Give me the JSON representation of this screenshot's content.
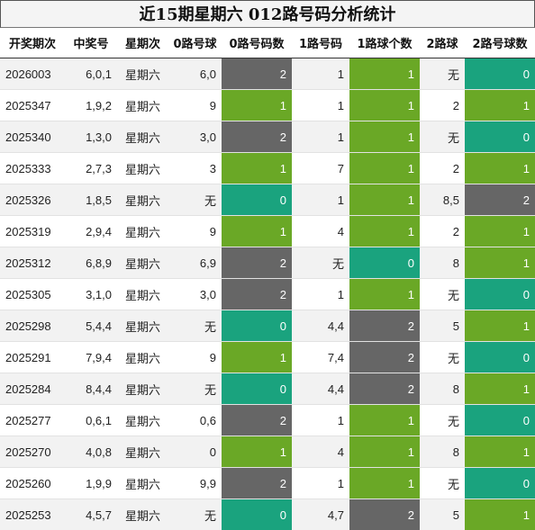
{
  "title": "近15期星期六 012路号码分析统计",
  "headers": [
    "开奖期次",
    "中奖号",
    "星期次",
    "0路号球",
    "0路号码数",
    "1路号码",
    "1路球个数",
    "2路球",
    "2路号球数"
  ],
  "rows": [
    {
      "period": "2026003",
      "number": "6,0,1",
      "weekday": "星期六",
      "r0": "6,0",
      "r0c": "2",
      "r1": "1",
      "r1c": "1",
      "r2": "无",
      "r2c": "0"
    },
    {
      "period": "2025347",
      "number": "1,9,2",
      "weekday": "星期六",
      "r0": "9",
      "r0c": "1",
      "r1": "1",
      "r1c": "1",
      "r2": "2",
      "r2c": "1"
    },
    {
      "period": "2025340",
      "number": "1,3,0",
      "weekday": "星期六",
      "r0": "3,0",
      "r0c": "2",
      "r1": "1",
      "r1c": "1",
      "r2": "无",
      "r2c": "0"
    },
    {
      "period": "2025333",
      "number": "2,7,3",
      "weekday": "星期六",
      "r0": "3",
      "r0c": "1",
      "r1": "7",
      "r1c": "1",
      "r2": "2",
      "r2c": "1"
    },
    {
      "period": "2025326",
      "number": "1,8,5",
      "weekday": "星期六",
      "r0": "无",
      "r0c": "0",
      "r1": "1",
      "r1c": "1",
      "r2": "8,5",
      "r2c": "2"
    },
    {
      "period": "2025319",
      "number": "2,9,4",
      "weekday": "星期六",
      "r0": "9",
      "r0c": "1",
      "r1": "4",
      "r1c": "1",
      "r2": "2",
      "r2c": "1"
    },
    {
      "period": "2025312",
      "number": "6,8,9",
      "weekday": "星期六",
      "r0": "6,9",
      "r0c": "2",
      "r1": "无",
      "r1c": "0",
      "r2": "8",
      "r2c": "1"
    },
    {
      "period": "2025305",
      "number": "3,1,0",
      "weekday": "星期六",
      "r0": "3,0",
      "r0c": "2",
      "r1": "1",
      "r1c": "1",
      "r2": "无",
      "r2c": "0"
    },
    {
      "period": "2025298",
      "number": "5,4,4",
      "weekday": "星期六",
      "r0": "无",
      "r0c": "0",
      "r1": "4,4",
      "r1c": "2",
      "r2": "5",
      "r2c": "1"
    },
    {
      "period": "2025291",
      "number": "7,9,4",
      "weekday": "星期六",
      "r0": "9",
      "r0c": "1",
      "r1": "7,4",
      "r1c": "2",
      "r2": "无",
      "r2c": "0"
    },
    {
      "period": "2025284",
      "number": "8,4,4",
      "weekday": "星期六",
      "r0": "无",
      "r0c": "0",
      "r1": "4,4",
      "r1c": "2",
      "r2": "8",
      "r2c": "1"
    },
    {
      "period": "2025277",
      "number": "0,6,1",
      "weekday": "星期六",
      "r0": "0,6",
      "r0c": "2",
      "r1": "1",
      "r1c": "1",
      "r2": "无",
      "r2c": "0"
    },
    {
      "period": "2025270",
      "number": "4,0,8",
      "weekday": "星期六",
      "r0": "0",
      "r0c": "1",
      "r1": "4",
      "r1c": "1",
      "r2": "8",
      "r2c": "1"
    },
    {
      "period": "2025260",
      "number": "1,9,9",
      "weekday": "星期六",
      "r0": "9,9",
      "r0c": "2",
      "r1": "1",
      "r1c": "1",
      "r2": "无",
      "r2c": "0"
    },
    {
      "period": "2025253",
      "number": "4,5,7",
      "weekday": "星期六",
      "r0": "无",
      "r0c": "0",
      "r1": "4,7",
      "r1c": "2",
      "r2": "5",
      "r2c": "1"
    }
  ],
  "colors": {
    "count_0": "#1aa37e",
    "count_1": "#6aa826",
    "count_2": "#666666"
  }
}
